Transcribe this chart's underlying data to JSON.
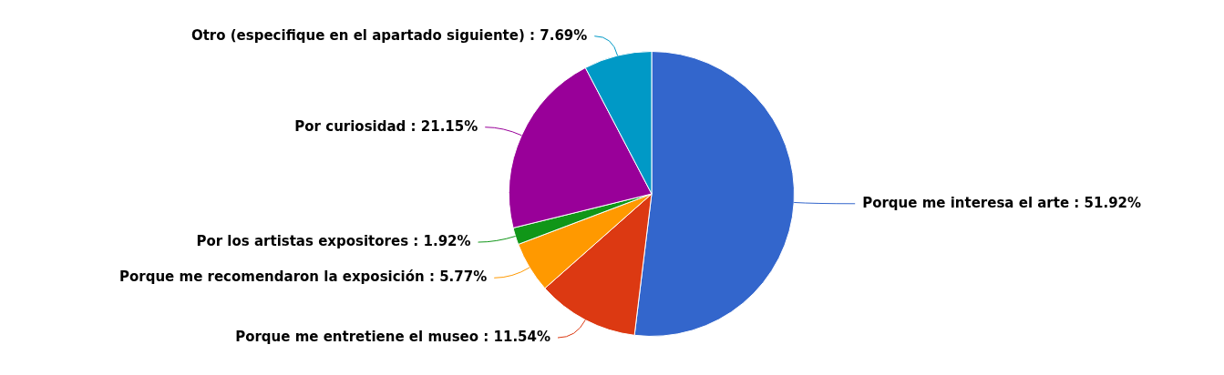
{
  "chart_data": {
    "type": "pie",
    "categories": [
      "Porque me interesa el arte",
      "Porque me entretiene el museo",
      "Porque me recomendaron la exposición",
      "Por los artistas expositores",
      "Por curiosidad",
      "Otro (especifique en el apartado siguiente)"
    ],
    "values": [
      51.92,
      11.54,
      5.77,
      1.92,
      21.15,
      7.69
    ],
    "value_labels": [
      "51.92%",
      "11.54%",
      "5.77%",
      "1.92%",
      "21.15%",
      "7.69%"
    ],
    "colors": [
      "#3366cc",
      "#dc3912",
      "#ff9900",
      "#109618",
      "#990099",
      "#0099c6"
    ],
    "legend": false
  }
}
